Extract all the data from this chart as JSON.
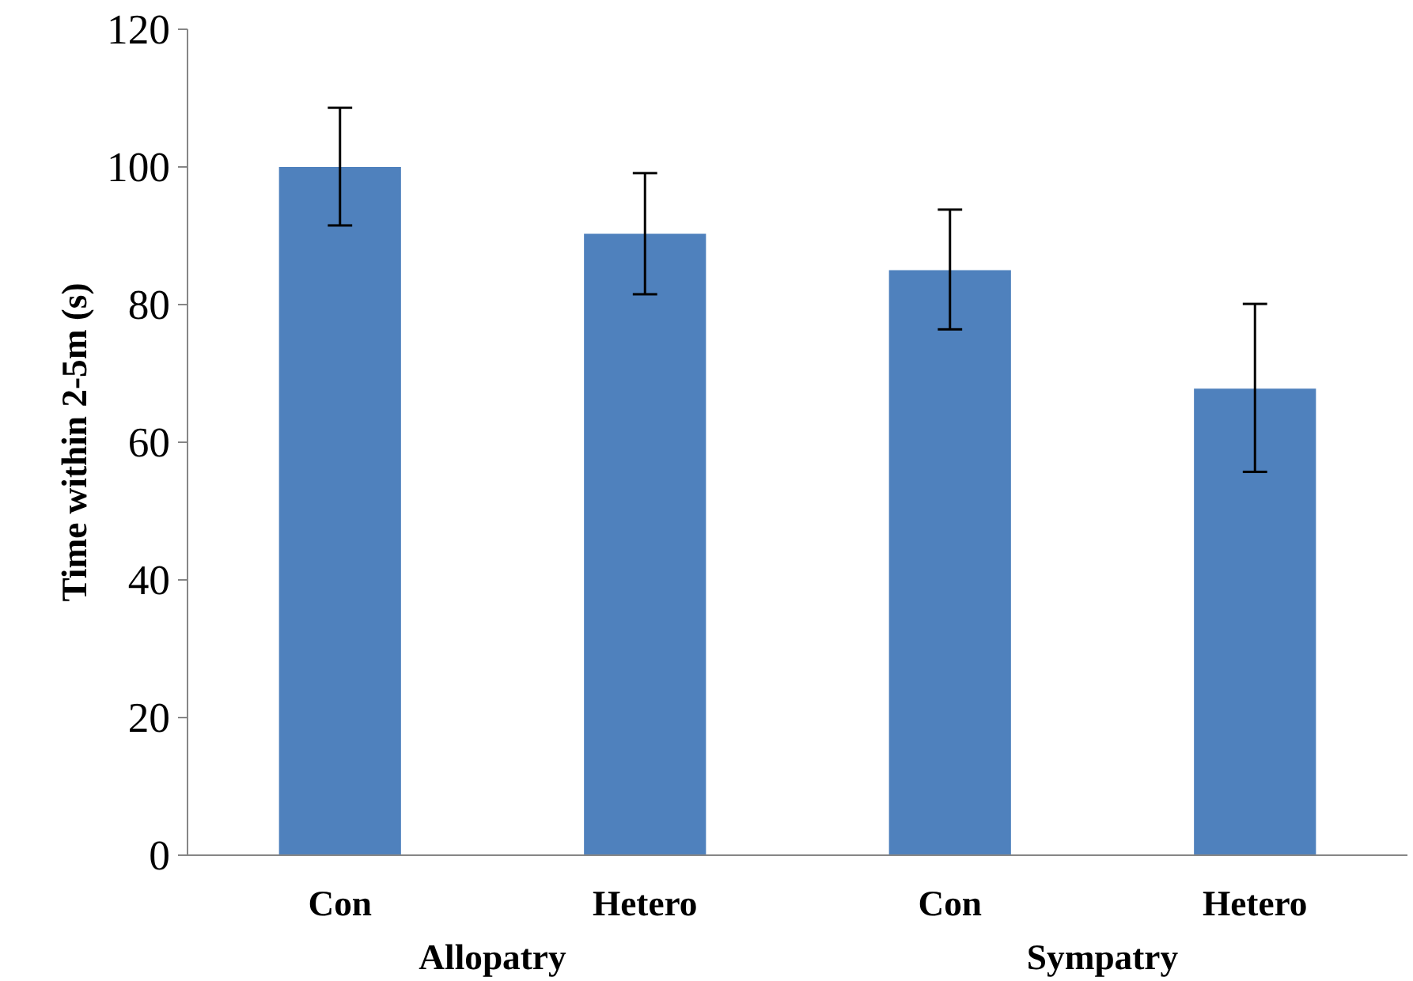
{
  "chart_data": {
    "type": "bar",
    "ylabel": "Time within 2-5m (s)",
    "categories": [
      "Con",
      "Hetero",
      "Con",
      "Hetero"
    ],
    "values": [
      100,
      90.3,
      85,
      67.8
    ],
    "errors": [
      [
        91.5,
        108.6
      ],
      [
        81.5,
        99.1
      ],
      [
        76.4,
        93.8
      ],
      [
        55.7,
        80.1
      ]
    ],
    "color": "#4f81bd",
    "ylim": [
      0,
      120
    ],
    "yticks": [
      0,
      20,
      40,
      60,
      80,
      100,
      120
    ],
    "annotations": [
      "Allopatry",
      "Sympatry"
    ],
    "grid": false
  }
}
